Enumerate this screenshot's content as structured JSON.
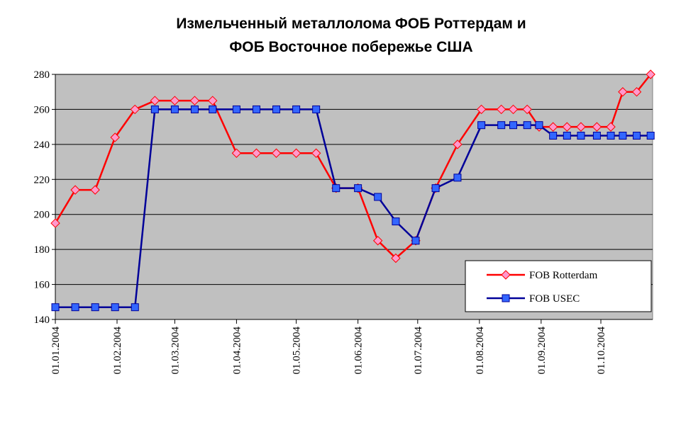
{
  "chart_data": {
    "type": "line",
    "title": [
      "Измельченный металлолома ФОБ Роттердам и",
      "ФОБ Восточное побережье США"
    ],
    "x": [
      "2004-01-01",
      "2004-01-11",
      "2004-01-21",
      "2004-01-31",
      "2004-02-10",
      "2004-02-20",
      "2004-03-01",
      "2004-03-11",
      "2004-03-20",
      "2004-04-01",
      "2004-04-11",
      "2004-04-21",
      "2004-05-01",
      "2004-05-11",
      "2004-05-21",
      "2004-06-01",
      "2004-06-11",
      "2004-06-20",
      "2004-06-30",
      "2004-07-10",
      "2004-07-21",
      "2004-08-02",
      "2004-08-12",
      "2004-08-18",
      "2004-08-25",
      "2004-08-31",
      "2004-09-07",
      "2004-09-14",
      "2004-09-21",
      "2004-09-29",
      "2004-10-06",
      "2004-10-12",
      "2004-10-19",
      "2004-10-26"
    ],
    "series": [
      {
        "name": "FOB Rotterdam",
        "color": "#ff0000",
        "marker_fill": "#ff99cc",
        "marker": "diamond",
        "values": [
          195,
          214,
          214,
          244,
          260,
          265,
          265,
          265,
          265,
          235,
          235,
          235,
          235,
          235,
          215,
          215,
          185,
          175,
          185,
          215,
          240,
          260,
          260,
          260,
          260,
          250,
          250,
          250,
          250,
          250,
          250,
          270,
          270,
          280
        ]
      },
      {
        "name": "FOB USEC",
        "color": "#000099",
        "marker_fill": "#3366ff",
        "marker": "square",
        "values": [
          147,
          147,
          147,
          147,
          147,
          260,
          260,
          260,
          260,
          260,
          260,
          260,
          260,
          260,
          215,
          215,
          210,
          196,
          185,
          215,
          221,
          251,
          251,
          251,
          251,
          251,
          245,
          245,
          245,
          245,
          245,
          245,
          245,
          245
        ]
      }
    ],
    "xlim": [
      "2004-01-01",
      "2004-10-27"
    ],
    "xticks": [
      {
        "value": "2004-01-01",
        "label": "01.01.2004"
      },
      {
        "value": "2004-02-01",
        "label": "01.02.2004"
      },
      {
        "value": "2004-03-01",
        "label": "01.03.2004"
      },
      {
        "value": "2004-04-01",
        "label": "01.04.2004"
      },
      {
        "value": "2004-05-01",
        "label": "01.05.2004"
      },
      {
        "value": "2004-06-01",
        "label": "01.06.2004"
      },
      {
        "value": "2004-07-01",
        "label": "01.07.2004"
      },
      {
        "value": "2004-08-01",
        "label": "01.08.2004"
      },
      {
        "value": "2004-09-01",
        "label": "01.09.2004"
      },
      {
        "value": "2004-10-01",
        "label": "01.10.2004"
      }
    ],
    "ylim": [
      140,
      280
    ],
    "yticks": [
      140,
      160,
      180,
      200,
      220,
      240,
      260,
      280
    ],
    "grid": true,
    "legend": "lower-right",
    "plot_background": "#c0c0c0"
  }
}
